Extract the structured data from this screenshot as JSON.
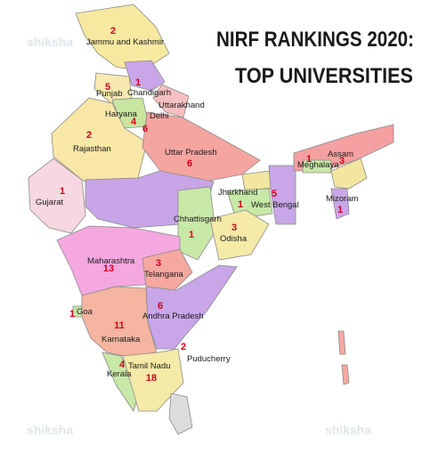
{
  "header": {
    "title_line1": "NIRF RANKINGS 2020:",
    "title_line2": "TOP UNIVERSITIES"
  },
  "logo": "shiksha",
  "regions": [
    {
      "name": "Jammu and Kashmir",
      "count": 2
    },
    {
      "name": "Chandigarh",
      "count": 1
    },
    {
      "name": "Punjab",
      "count": 5
    },
    {
      "name": "Uttarakhand"
    },
    {
      "name": "Haryana",
      "count": 4
    },
    {
      "name": "Delhi",
      "count": 6
    },
    {
      "name": "Rajasthan",
      "count": 2
    },
    {
      "name": "Uttar Pradesh",
      "count": 6
    },
    {
      "name": "Gujarat",
      "count": 1
    },
    {
      "name": "Jharkhand",
      "count": 1
    },
    {
      "name": "West Bengal",
      "count": 5
    },
    {
      "name": "Assam",
      "count": 3
    },
    {
      "name": "Meghalaya",
      "count": 1
    },
    {
      "name": "Mizoram",
      "count": 1
    },
    {
      "name": "Chhattisgarh",
      "count": 1
    },
    {
      "name": "Odisha",
      "count": 3
    },
    {
      "name": "Maharashtra",
      "count": 13
    },
    {
      "name": "Telangana",
      "count": 3
    },
    {
      "name": "Goa",
      "count": 1
    },
    {
      "name": "Andhra Pradesh",
      "count": 6
    },
    {
      "name": "Karnataka",
      "count": 11
    },
    {
      "name": "Puducherry",
      "count": 2
    },
    {
      "name": "Tamil Nadu",
      "count": 18
    },
    {
      "name": "Kerala",
      "count": 4
    }
  ]
}
